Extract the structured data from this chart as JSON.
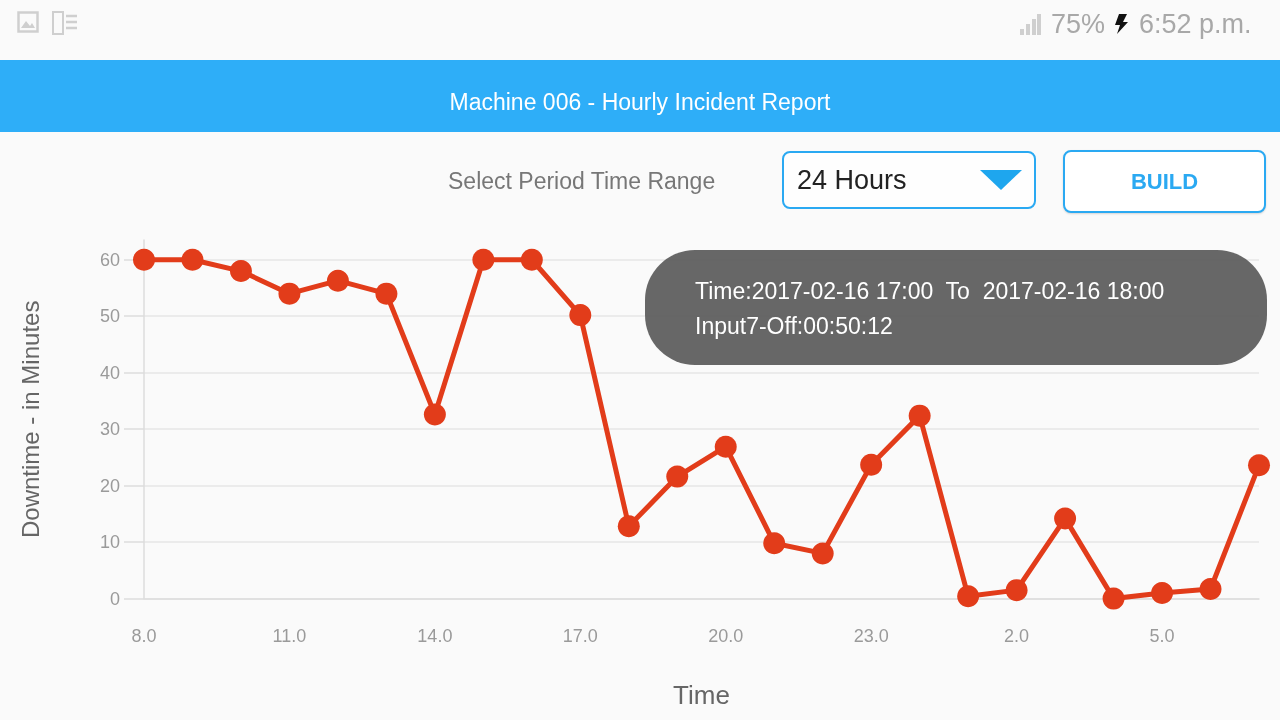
{
  "chart_data": {
    "type": "line",
    "title": "Machine 006 - Hourly Incident Report",
    "xlabel": "Time",
    "ylabel": "Downtime - in Minutes",
    "categories": [
      "8.0",
      null,
      null,
      "11.0",
      null,
      null,
      "14.0",
      null,
      null,
      "17.0",
      null,
      null,
      "20.0",
      null,
      null,
      "23.0",
      null,
      null,
      "2.0",
      null,
      null,
      "5.0",
      null,
      null
    ],
    "values": [
      60,
      60,
      58,
      54,
      56.3,
      54,
      32.6,
      60,
      60,
      50.2,
      12.8,
      21.6,
      26.9,
      9.8,
      8,
      23.7,
      32.4,
      0.4,
      1.5,
      14.2,
      0,
      1,
      1.7,
      23.6
    ],
    "color": "#e23c1a",
    "ylim": [
      0,
      63.5
    ],
    "yticks": [
      0,
      10,
      20,
      30,
      40,
      50,
      60
    ],
    "grid": "y",
    "marker": "circle",
    "line_style": "solid",
    "annotations": [
      "Select Period Time Range",
      "24 Hours",
      "BUILD",
      "Time:2017-02-16 17:00  To  2017-02-16 18:00",
      "Input7-Off:00:50:12",
      "75%",
      "6:52 p.m."
    ]
  }
}
